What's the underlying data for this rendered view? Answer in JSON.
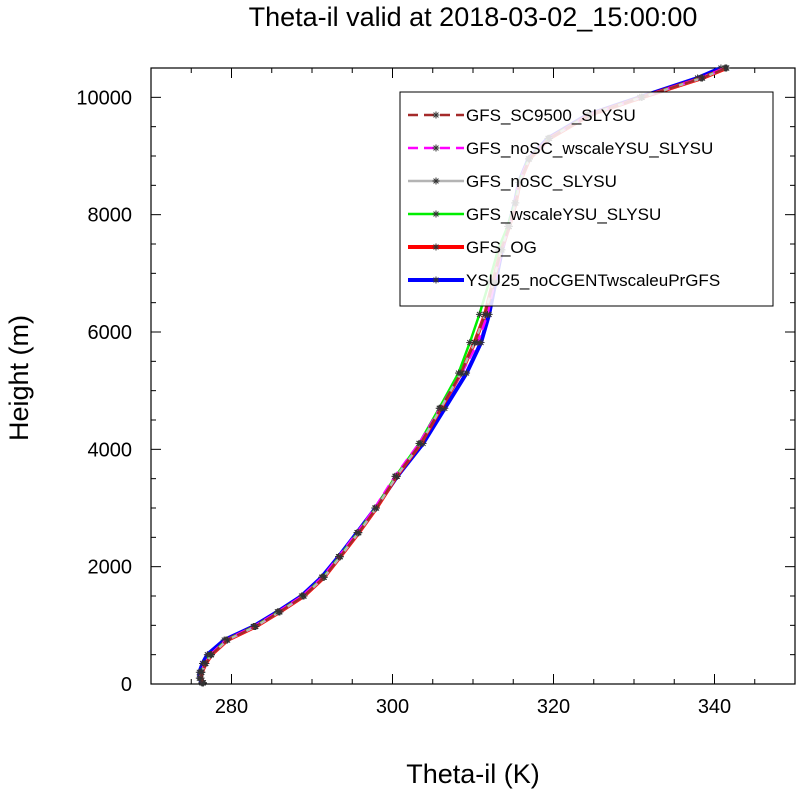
{
  "chart_data": {
    "type": "line",
    "title": "Theta-il valid at 2018-03-02_15:00:00",
    "xlabel": "Theta-il (K)",
    "ylabel": "Height (m)",
    "xlim": [
      270,
      350
    ],
    "ylim": [
      0,
      10500
    ],
    "xticks": [
      280,
      300,
      320,
      340
    ],
    "yticks": [
      0,
      2000,
      4000,
      6000,
      8000,
      10000
    ],
    "xtick_labels": [
      "280",
      "300",
      "320",
      "340"
    ],
    "ytick_labels": [
      "0",
      "2000",
      "4000",
      "6000",
      "8000",
      "10000"
    ],
    "legend_position": "top-right",
    "marker": "asterisk",
    "series": [
      {
        "name": "GFS_SC9500_SLYSU",
        "color": "#a52a2a",
        "style": "dashed",
        "points": [
          [
            276.5,
            20
          ],
          [
            276.2,
            100
          ],
          [
            276.3,
            200
          ],
          [
            276.8,
            350
          ],
          [
            277.5,
            500
          ],
          [
            279.5,
            750
          ],
          [
            283,
            980
          ],
          [
            286,
            1230
          ],
          [
            289,
            1500
          ],
          [
            291.5,
            1820
          ],
          [
            293.5,
            2170
          ],
          [
            295.8,
            2580
          ],
          [
            298,
            3000
          ],
          [
            300.5,
            3540
          ],
          [
            303.5,
            4100
          ],
          [
            306,
            4700
          ],
          [
            308.5,
            5300
          ],
          [
            310.2,
            5820
          ],
          [
            311.5,
            6300
          ],
          [
            312.5,
            6850
          ],
          [
            313.5,
            7400
          ],
          [
            314.5,
            7800
          ],
          [
            315.3,
            8200
          ],
          [
            315.8,
            8550
          ],
          [
            317,
            8950
          ],
          [
            319.5,
            9300
          ],
          [
            324.5,
            9700
          ],
          [
            331,
            10000
          ],
          [
            338.5,
            10330
          ],
          [
            341.5,
            10500
          ]
        ]
      },
      {
        "name": "GFS_noSC_wscaleYSU_SLYSU",
        "color": "#ff00ff",
        "style": "dashed",
        "points": [
          [
            276.4,
            20
          ],
          [
            276.1,
            100
          ],
          [
            276.2,
            200
          ],
          [
            276.7,
            350
          ],
          [
            277.4,
            500
          ],
          [
            279.3,
            750
          ],
          [
            282.8,
            980
          ],
          [
            285.8,
            1230
          ],
          [
            288.8,
            1500
          ],
          [
            291.3,
            1820
          ],
          [
            293.3,
            2170
          ],
          [
            295.6,
            2580
          ],
          [
            297.8,
            3000
          ],
          [
            300.3,
            3540
          ],
          [
            303.3,
            4100
          ],
          [
            305.9,
            4700
          ],
          [
            308.6,
            5300
          ],
          [
            310.6,
            5820
          ],
          [
            311.8,
            6300
          ],
          [
            312.7,
            6850
          ],
          [
            313.6,
            7400
          ],
          [
            314.5,
            7800
          ],
          [
            315.2,
            8200
          ],
          [
            315.7,
            8550
          ],
          [
            316.9,
            8950
          ],
          [
            319.4,
            9300
          ],
          [
            324.4,
            9700
          ],
          [
            330.9,
            10000
          ],
          [
            338.3,
            10330
          ],
          [
            341.3,
            10500
          ]
        ]
      },
      {
        "name": "GFS_noSC_SLYSU",
        "color": "#b4b4b4",
        "style": "solid",
        "points": [
          [
            276.5,
            20
          ],
          [
            276.2,
            100
          ],
          [
            276.3,
            200
          ],
          [
            276.8,
            350
          ],
          [
            277.5,
            500
          ],
          [
            279.5,
            750
          ],
          [
            283,
            980
          ],
          [
            286,
            1230
          ],
          [
            289,
            1500
          ],
          [
            291.5,
            1820
          ],
          [
            293.5,
            2170
          ],
          [
            295.8,
            2580
          ],
          [
            298,
            3000
          ],
          [
            300.5,
            3540
          ],
          [
            303.5,
            4100
          ],
          [
            306,
            4700
          ],
          [
            308.5,
            5300
          ],
          [
            310.2,
            5820
          ],
          [
            311.5,
            6300
          ],
          [
            312.5,
            6850
          ],
          [
            313.5,
            7400
          ],
          [
            314.5,
            7800
          ],
          [
            315.3,
            8200
          ],
          [
            315.8,
            8550
          ],
          [
            317,
            8950
          ],
          [
            319.5,
            9300
          ],
          [
            324.5,
            9700
          ],
          [
            331,
            10000
          ],
          [
            338.5,
            10330
          ],
          [
            341.5,
            10500
          ]
        ]
      },
      {
        "name": "GFS_wscaleYSU_SLYSU",
        "color": "#00ee00",
        "style": "solid",
        "points": [
          [
            276.4,
            20
          ],
          [
            276.1,
            100
          ],
          [
            276.2,
            200
          ],
          [
            276.7,
            350
          ],
          [
            277.4,
            500
          ],
          [
            279.4,
            750
          ],
          [
            282.9,
            980
          ],
          [
            285.9,
            1230
          ],
          [
            288.9,
            1500
          ],
          [
            291.4,
            1820
          ],
          [
            293.4,
            2170
          ],
          [
            295.7,
            2580
          ],
          [
            297.9,
            3000
          ],
          [
            300.4,
            3540
          ],
          [
            303.3,
            4100
          ],
          [
            305.8,
            4700
          ],
          [
            308.2,
            5300
          ],
          [
            309.6,
            5820
          ],
          [
            310.8,
            6300
          ],
          [
            312.0,
            6850
          ],
          [
            313.1,
            7400
          ],
          [
            314.3,
            7800
          ],
          [
            315.2,
            8200
          ],
          [
            315.7,
            8550
          ],
          [
            316.9,
            8950
          ],
          [
            319.4,
            9300
          ],
          [
            324.4,
            9700
          ],
          [
            330.9,
            10000
          ],
          [
            338.4,
            10330
          ],
          [
            341.4,
            10500
          ]
        ]
      },
      {
        "name": "GFS_OG",
        "color": "#ff0000",
        "style": "solid",
        "points": [
          [
            276.5,
            20
          ],
          [
            276.2,
            100
          ],
          [
            276.3,
            200
          ],
          [
            276.8,
            350
          ],
          [
            277.5,
            500
          ],
          [
            279.5,
            750
          ],
          [
            283,
            980
          ],
          [
            286,
            1230
          ],
          [
            289,
            1500
          ],
          [
            291.5,
            1820
          ],
          [
            293.5,
            2170
          ],
          [
            295.8,
            2580
          ],
          [
            298,
            3000
          ],
          [
            300.5,
            3540
          ],
          [
            303.5,
            4100
          ],
          [
            306,
            4700
          ],
          [
            308.5,
            5300
          ],
          [
            310.2,
            5820
          ],
          [
            311.5,
            6300
          ],
          [
            312.5,
            6850
          ],
          [
            313.5,
            7400
          ],
          [
            314.5,
            7800
          ],
          [
            315.3,
            8200
          ],
          [
            315.8,
            8550
          ],
          [
            317,
            8950
          ],
          [
            319.5,
            9300
          ],
          [
            324.5,
            9700
          ],
          [
            331,
            10000
          ],
          [
            338.5,
            10330
          ],
          [
            341.5,
            10500
          ]
        ]
      },
      {
        "name": "YSU25_noCGENTwscaleuPrGFS",
        "color": "#0000ff",
        "style": "solid",
        "points": [
          [
            276.3,
            20
          ],
          [
            276.0,
            100
          ],
          [
            276.0,
            200
          ],
          [
            276.4,
            350
          ],
          [
            277.0,
            500
          ],
          [
            279.1,
            750
          ],
          [
            282.7,
            980
          ],
          [
            285.7,
            1230
          ],
          [
            288.7,
            1500
          ],
          [
            291.2,
            1820
          ],
          [
            293.3,
            2170
          ],
          [
            295.6,
            2580
          ],
          [
            297.9,
            3000
          ],
          [
            300.6,
            3540
          ],
          [
            303.8,
            4100
          ],
          [
            306.5,
            4700
          ],
          [
            309.2,
            5300
          ],
          [
            311.0,
            5820
          ],
          [
            312.0,
            6300
          ],
          [
            312.8,
            6850
          ],
          [
            313.6,
            7400
          ],
          [
            314.4,
            7800
          ],
          [
            315.2,
            8200
          ],
          [
            315.7,
            8550
          ],
          [
            316.9,
            8950
          ],
          [
            319.3,
            9300
          ],
          [
            324.2,
            9700
          ],
          [
            330.7,
            10000
          ],
          [
            337.9,
            10330
          ],
          [
            340.8,
            10500
          ]
        ]
      }
    ]
  }
}
